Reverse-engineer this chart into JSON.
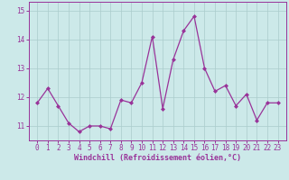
{
  "x": [
    0,
    1,
    2,
    3,
    4,
    5,
    6,
    7,
    8,
    9,
    10,
    11,
    12,
    13,
    14,
    15,
    16,
    17,
    18,
    19,
    20,
    21,
    22,
    23
  ],
  "y": [
    11.8,
    12.3,
    11.7,
    11.1,
    10.8,
    11.0,
    11.0,
    10.9,
    11.9,
    11.8,
    12.5,
    14.1,
    11.6,
    13.3,
    14.3,
    14.8,
    13.0,
    12.2,
    12.4,
    11.7,
    12.1,
    11.2,
    11.8,
    11.8
  ],
  "line_color": "#993399",
  "marker": "D",
  "markersize": 2.0,
  "linewidth": 0.9,
  "background_color": "#cce9e9",
  "grid_color": "#aacccc",
  "xlabel": "Windchill (Refroidissement éolien,°C)",
  "xlabel_fontsize": 6.0,
  "tick_fontsize": 5.5,
  "ylim": [
    10.5,
    15.3
  ],
  "yticks": [
    11,
    12,
    13,
    14,
    15
  ],
  "title": ""
}
